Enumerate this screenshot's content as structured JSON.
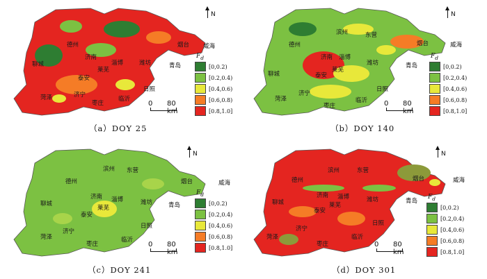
{
  "legend_colors": [
    "#2e7d32",
    "#7cc142",
    "#e8e83a",
    "#f57c26",
    "#e42520"
  ],
  "legend_symbol": "F",
  "legend_subscript": "d",
  "legend_items": [
    "[0,0.2)",
    "[0.2,0.4)",
    "[0.4,0.6)",
    "[0.6,0.8)",
    "[0.8,1.0]"
  ],
  "north_label": "N",
  "scale": {
    "zero": "0",
    "label": "80 km"
  },
  "panels": [
    {
      "caption": "（a）DOY 25",
      "dominant_class": "[0.8,1.0]"
    },
    {
      "caption": "（b）DOY 140",
      "dominant_class": "[0.2,0.4)"
    },
    {
      "caption": "（c）DOY 241",
      "dominant_class": "[0.2,0.4)"
    },
    {
      "caption": "（d）DOY 301",
      "dominant_class": "[0.8,1.0]"
    }
  ],
  "cities": {
    "binzhou": "滨州",
    "dongying": "东营",
    "dezhou": "德州",
    "yantai": "烟台",
    "weihai": "威海",
    "liaocheng": "聊城",
    "jinan": "济南",
    "zibo": "淄博",
    "weifang": "潍坊",
    "laiwu": "莱芜",
    "taian": "泰安",
    "qingdao": "青岛",
    "rizhao": "日照",
    "jining": "济宁",
    "heze": "菏泽",
    "zaozhuang": "枣庄",
    "linyi": "临沂"
  }
}
